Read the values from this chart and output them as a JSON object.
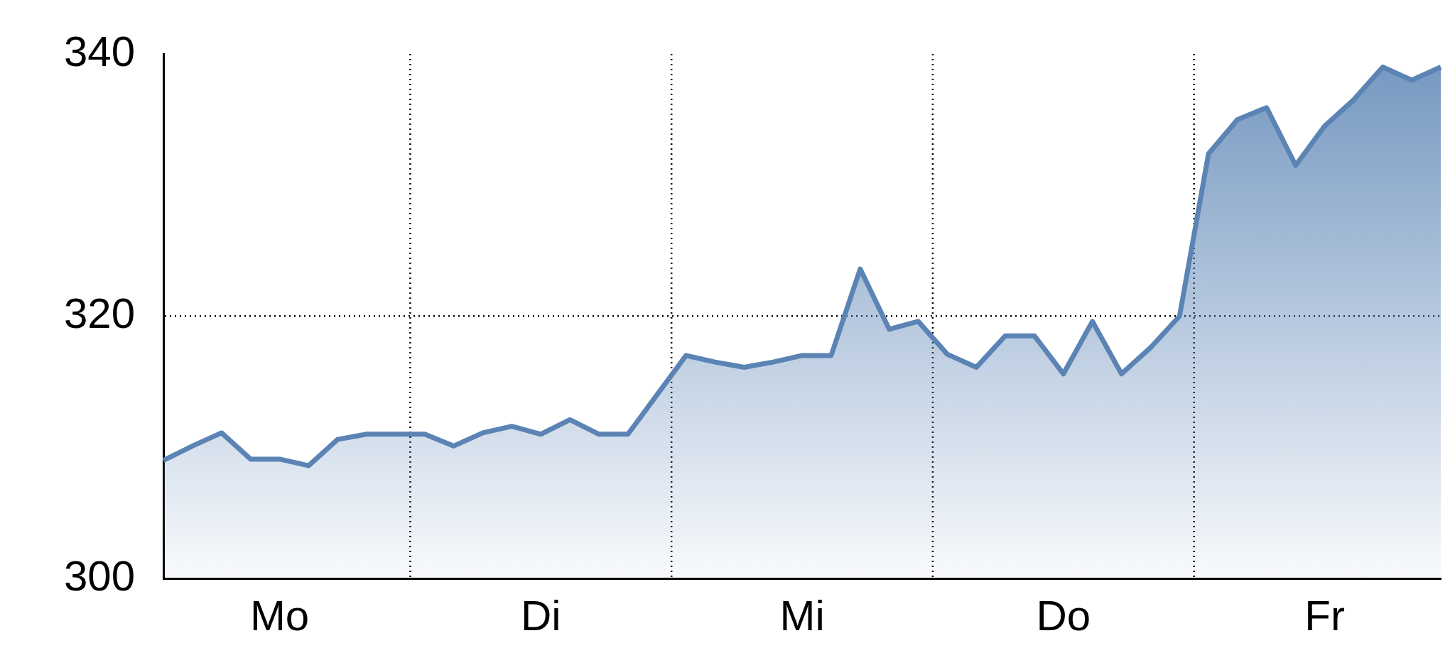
{
  "chart_data": {
    "type": "area",
    "categories": [
      null,
      null,
      null,
      null,
      "Mo",
      null,
      null,
      null,
      null,
      null,
      null,
      null,
      null,
      "Di",
      null,
      null,
      null,
      null,
      null,
      null,
      null,
      null,
      "Mi",
      null,
      null,
      null,
      null,
      null,
      null,
      null,
      null,
      "Do",
      null,
      null,
      null,
      null,
      null,
      null,
      null,
      null,
      "Fr",
      null,
      null,
      null,
      null
    ],
    "series": [
      {
        "color": "#5b84b5",
        "values": [
          309.0,
          310.1,
          311.1,
          309.1,
          309.1,
          308.6,
          310.6,
          311.0,
          311.0,
          311.0,
          310.1,
          311.1,
          311.6,
          311.0,
          312.1,
          311.0,
          311.0,
          314.0,
          317.0,
          316.5,
          316.1,
          316.5,
          317.0,
          317.0,
          323.6,
          319.0,
          319.6,
          317.1,
          316.1,
          318.5,
          318.5,
          315.6,
          319.6,
          315.6,
          317.6,
          320.0,
          332.4,
          335.0,
          335.9,
          331.5,
          334.5,
          336.5,
          339.0,
          338.0,
          339.0
        ]
      }
    ],
    "ylim": [
      300,
      340
    ],
    "yticks": [
      300,
      320,
      340
    ],
    "grid": true,
    "legend": false
  }
}
